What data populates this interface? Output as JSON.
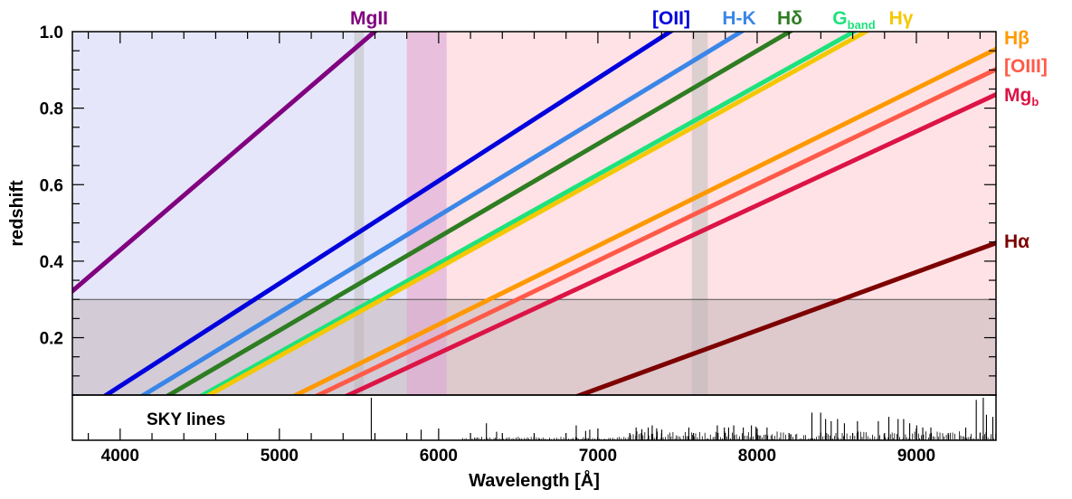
{
  "chart_data": {
    "type": "line",
    "xlabel": "Wavelength [Å]",
    "ylabel": "redshift",
    "xlim": [
      3700,
      9500
    ],
    "ylim": [
      0.05,
      1.0
    ],
    "x_ticks": [
      4000,
      5000,
      6000,
      7000,
      8000,
      9000
    ],
    "x_tick_labels": [
      "4000",
      "5000",
      "6000",
      "7000",
      "8000",
      "9000"
    ],
    "y_ticks": [
      0.2,
      0.4,
      0.6,
      0.8,
      1.0
    ],
    "y_tick_labels": [
      "0.2",
      "0.4",
      "0.6",
      "0.8",
      "1.0"
    ],
    "regions": [
      {
        "x": [
          3700,
          6050
        ],
        "color": "#e6e6fa"
      },
      {
        "x": [
          5800,
          9500
        ],
        "color": "#ffe2e5"
      },
      {
        "x": [
          5470,
          5530
        ],
        "color": "#bfbfbf"
      },
      {
        "x": [
          7590,
          7690
        ],
        "color": "#bfbfbf"
      },
      {
        "y": [
          0.05,
          0.3
        ],
        "color": "#c2b5b8"
      }
    ],
    "hline_y": 0.3,
    "series": [
      {
        "name": "MgII",
        "rest_wavelength": 2799,
        "color": "#800080",
        "label_position": "top"
      },
      {
        "name": "[OII]",
        "rest_wavelength": 3727,
        "color": "#0000dd",
        "label_position": "top"
      },
      {
        "name": "H-K",
        "rest_wavelength": 3950,
        "color": "#3a86e8",
        "label_position": "top"
      },
      {
        "name": "Hδ",
        "rest_wavelength": 4102,
        "color": "#2e7d22",
        "label_position": "top"
      },
      {
        "name": "G",
        "subscript": "band",
        "rest_wavelength": 4304,
        "color": "#1ee27c",
        "label_position": "top"
      },
      {
        "name": "Hγ",
        "rest_wavelength": 4341,
        "color": "#f4c800",
        "label_position": "top"
      },
      {
        "name": "Hβ",
        "rest_wavelength": 4861,
        "color": "#ff9900",
        "label_position": "right"
      },
      {
        "name": "[OIII]",
        "rest_wavelength": 4996,
        "color": "#ff5a48",
        "label_position": "right"
      },
      {
        "name": "Mg",
        "subscript": "b",
        "rest_wavelength": 5175,
        "color": "#dc1446",
        "label_position": "right"
      },
      {
        "name": "Hα",
        "rest_wavelength": 6563,
        "color": "#7d0000",
        "label_position": "right"
      }
    ],
    "sky_panel": {
      "label": "SKY lines",
      "lines": [
        [
          5577,
          1.0
        ],
        [
          5890,
          0.25
        ],
        [
          6300,
          0.4
        ],
        [
          6364,
          0.2
        ],
        [
          6864,
          0.35
        ],
        [
          6923,
          0.22
        ],
        [
          6949,
          0.25
        ],
        [
          7240,
          0.3
        ],
        [
          7276,
          0.26
        ],
        [
          7316,
          0.3
        ],
        [
          7341,
          0.35
        ],
        [
          7369,
          0.28
        ],
        [
          7401,
          0.25
        ],
        [
          7571,
          0.3
        ],
        [
          7750,
          0.35
        ],
        [
          7794,
          0.3
        ],
        [
          7821,
          0.3
        ],
        [
          7853,
          0.35
        ],
        [
          7913,
          0.3
        ],
        [
          7964,
          0.35
        ],
        [
          7993,
          0.32
        ],
        [
          8062,
          0.3
        ],
        [
          8344,
          0.65
        ],
        [
          8399,
          0.65
        ],
        [
          8430,
          0.5
        ],
        [
          8465,
          0.45
        ],
        [
          8505,
          0.5
        ],
        [
          8548,
          0.4
        ],
        [
          8630,
          0.45
        ],
        [
          8761,
          0.45
        ],
        [
          8827,
          0.55
        ],
        [
          8885,
          0.5
        ],
        [
          8920,
          0.5
        ],
        [
          8958,
          0.4
        ],
        [
          9002,
          0.35
        ],
        [
          9040,
          0.3
        ],
        [
          9091,
          0.3
        ],
        [
          9310,
          0.3
        ],
        [
          9376,
          0.95
        ],
        [
          9420,
          1.0
        ],
        [
          9440,
          0.6
        ],
        [
          9480,
          0.55
        ]
      ]
    }
  }
}
